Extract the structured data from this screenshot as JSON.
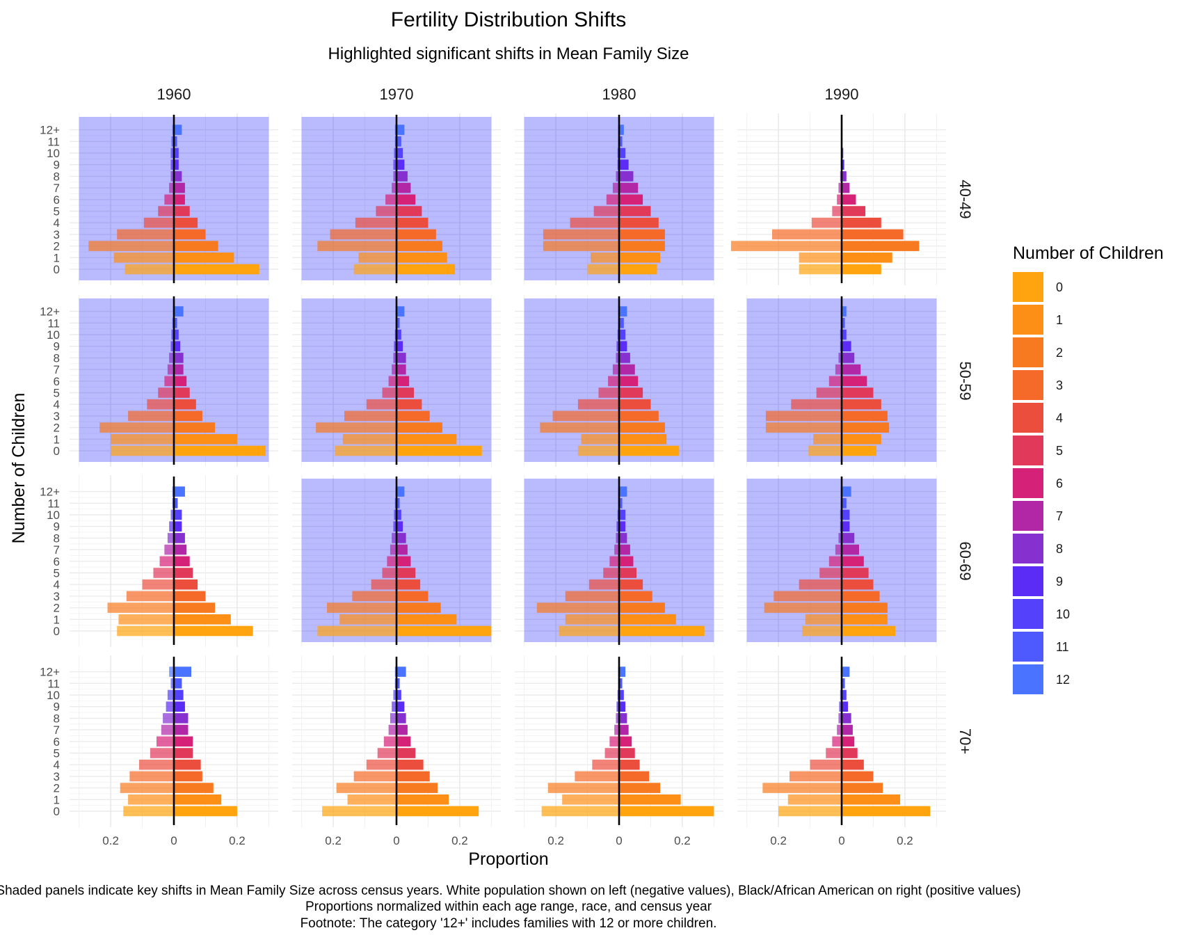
{
  "chart_data": {
    "type": "bar",
    "orientation": "horizontal-population-pyramid",
    "title": "Fertility Distribution Shifts",
    "subtitle": "Highlighted significant shifts in Mean Family Size",
    "xlabel": "Proportion",
    "ylabel": "Number of Children",
    "xlim": [
      -0.3,
      0.3
    ],
    "x_tick_labels": [
      "0.2",
      "0",
      "0.2"
    ],
    "x_tick_values": [
      -0.2,
      0,
      0.2
    ],
    "categories": [
      "0",
      "1",
      "2",
      "3",
      "4",
      "5",
      "6",
      "7",
      "8",
      "9",
      "10",
      "11",
      "12+"
    ],
    "columns": [
      "1960",
      "1970",
      "1980",
      "1990"
    ],
    "rows": [
      "40-49",
      "50-59",
      "60-69",
      "70+"
    ],
    "legend": {
      "title": "Number of Children",
      "labels": [
        "0",
        "1",
        "2",
        "3",
        "4",
        "5",
        "6",
        "7",
        "8",
        "9",
        "10",
        "11",
        "12"
      ],
      "colors": [
        "#FFA40F",
        "#FD8F17",
        "#F87A20",
        "#F56A28",
        "#EC4E3E",
        "#E0395A",
        "#D62178",
        "#B127A6",
        "#8630D0",
        "#5A2CF5",
        "#5441FC",
        "#4E5AFE",
        "#4A74FF"
      ]
    },
    "highlight_color": "#0000FF",
    "panels": [
      {
        "column": "1960",
        "row": "40-49",
        "highlighted": true,
        "white": [
          -0.155,
          -0.19,
          -0.27,
          -0.18,
          -0.095,
          -0.05,
          -0.03,
          -0.015,
          -0.01,
          -0.01,
          -0.01,
          -0.008,
          -0.005
        ],
        "black": [
          0.27,
          0.19,
          0.14,
          0.1,
          0.075,
          0.05,
          0.035,
          0.035,
          0.025,
          0.015,
          0.015,
          0.01,
          0.025
        ]
      },
      {
        "column": "1970",
        "row": "40-49",
        "highlighted": true,
        "white": [
          -0.135,
          -0.12,
          -0.25,
          -0.21,
          -0.13,
          -0.065,
          -0.035,
          -0.015,
          -0.01,
          -0.01,
          -0.008,
          -0.005,
          -0.005
        ],
        "black": [
          0.185,
          0.16,
          0.145,
          0.125,
          0.1,
          0.08,
          0.06,
          0.045,
          0.035,
          0.025,
          0.02,
          0.015,
          0.025
        ]
      },
      {
        "column": "1980",
        "row": "40-49",
        "highlighted": true,
        "white": [
          -0.1,
          -0.09,
          -0.24,
          -0.24,
          -0.155,
          -0.08,
          -0.04,
          -0.02,
          -0.01,
          -0.005,
          -0.005,
          -0.003,
          -0.003
        ],
        "black": [
          0.12,
          0.13,
          0.145,
          0.145,
          0.125,
          0.1,
          0.075,
          0.06,
          0.045,
          0.03,
          0.02,
          0.01,
          0.015
        ]
      },
      {
        "column": "1990",
        "row": "40-49",
        "highlighted": false,
        "white": [
          -0.135,
          -0.135,
          -0.35,
          -0.22,
          -0.095,
          -0.03,
          -0.015,
          -0.01,
          -0.005,
          -0.003,
          -0.002,
          0,
          0
        ],
        "black": [
          0.125,
          0.16,
          0.245,
          0.195,
          0.125,
          0.075,
          0.045,
          0.025,
          0.015,
          0.008,
          0.005,
          0,
          0
        ]
      },
      {
        "column": "1960",
        "row": "50-59",
        "highlighted": true,
        "white": [
          -0.2,
          -0.2,
          -0.235,
          -0.145,
          -0.085,
          -0.05,
          -0.03,
          -0.02,
          -0.015,
          -0.01,
          -0.008,
          -0.005,
          -0.003
        ],
        "black": [
          0.29,
          0.2,
          0.13,
          0.09,
          0.07,
          0.05,
          0.04,
          0.03,
          0.03,
          0.02,
          0.015,
          0.01,
          0.03
        ]
      },
      {
        "column": "1970",
        "row": "50-59",
        "highlighted": true,
        "white": [
          -0.195,
          -0.17,
          -0.255,
          -0.165,
          -0.095,
          -0.045,
          -0.025,
          -0.015,
          -0.01,
          -0.008,
          -0.005,
          -0.003,
          -0.003
        ],
        "black": [
          0.27,
          0.19,
          0.145,
          0.105,
          0.08,
          0.055,
          0.04,
          0.03,
          0.03,
          0.02,
          0.015,
          0.01,
          0.025
        ]
      },
      {
        "column": "1980",
        "row": "50-59",
        "highlighted": true,
        "white": [
          -0.13,
          -0.12,
          -0.25,
          -0.21,
          -0.13,
          -0.065,
          -0.035,
          -0.02,
          -0.01,
          -0.008,
          -0.005,
          -0.003,
          -0.003
        ],
        "black": [
          0.19,
          0.15,
          0.145,
          0.125,
          0.1,
          0.075,
          0.06,
          0.05,
          0.035,
          0.025,
          0.02,
          0.015,
          0.025
        ]
      },
      {
        "column": "1990",
        "row": "50-59",
        "highlighted": true,
        "white": [
          -0.105,
          -0.09,
          -0.24,
          -0.24,
          -0.16,
          -0.08,
          -0.04,
          -0.02,
          -0.01,
          -0.005,
          -0.005,
          -0.003,
          -0.003
        ],
        "black": [
          0.11,
          0.125,
          0.15,
          0.145,
          0.125,
          0.1,
          0.08,
          0.06,
          0.04,
          0.03,
          0.015,
          0.01,
          0.015
        ]
      },
      {
        "column": "1960",
        "row": "60-69",
        "highlighted": false,
        "white": [
          -0.18,
          -0.175,
          -0.21,
          -0.15,
          -0.1,
          -0.065,
          -0.045,
          -0.03,
          -0.02,
          -0.015,
          -0.01,
          -0.005,
          -0.005
        ],
        "black": [
          0.25,
          0.18,
          0.13,
          0.1,
          0.075,
          0.06,
          0.05,
          0.04,
          0.035,
          0.025,
          0.025,
          0.012,
          0.035
        ]
      },
      {
        "column": "1970",
        "row": "60-69",
        "highlighted": true,
        "white": [
          -0.25,
          -0.18,
          -0.22,
          -0.14,
          -0.08,
          -0.045,
          -0.03,
          -0.02,
          -0.015,
          -0.01,
          -0.008,
          -0.005,
          -0.003
        ],
        "black": [
          0.3,
          0.19,
          0.14,
          0.1,
          0.075,
          0.06,
          0.045,
          0.035,
          0.03,
          0.02,
          0.015,
          0.01,
          0.025
        ]
      },
      {
        "column": "1980",
        "row": "60-69",
        "highlighted": true,
        "white": [
          -0.19,
          -0.17,
          -0.26,
          -0.17,
          -0.095,
          -0.05,
          -0.03,
          -0.015,
          -0.01,
          -0.008,
          -0.005,
          -0.003,
          -0.003
        ],
        "black": [
          0.27,
          0.18,
          0.145,
          0.105,
          0.075,
          0.055,
          0.045,
          0.035,
          0.025,
          0.02,
          0.02,
          0.01,
          0.025
        ]
      },
      {
        "column": "1990",
        "row": "60-69",
        "highlighted": true,
        "white": [
          -0.125,
          -0.115,
          -0.245,
          -0.215,
          -0.135,
          -0.07,
          -0.04,
          -0.02,
          -0.01,
          -0.005,
          -0.005,
          -0.003,
          -0.003
        ],
        "black": [
          0.17,
          0.145,
          0.145,
          0.12,
          0.1,
          0.085,
          0.07,
          0.055,
          0.04,
          0.025,
          0.025,
          0.015,
          0.03
        ]
      },
      {
        "column": "1960",
        "row": "70+",
        "highlighted": false,
        "white": [
          -0.16,
          -0.145,
          -0.17,
          -0.14,
          -0.11,
          -0.075,
          -0.055,
          -0.04,
          -0.035,
          -0.025,
          -0.02,
          -0.01,
          -0.015
        ],
        "black": [
          0.2,
          0.15,
          0.125,
          0.09,
          0.085,
          0.06,
          0.06,
          0.045,
          0.045,
          0.035,
          0.03,
          0.025,
          0.055
        ]
      },
      {
        "column": "1970",
        "row": "70+",
        "highlighted": false,
        "white": [
          -0.235,
          -0.155,
          -0.19,
          -0.135,
          -0.095,
          -0.06,
          -0.04,
          -0.025,
          -0.02,
          -0.015,
          -0.01,
          -0.005,
          -0.005
        ],
        "black": [
          0.26,
          0.165,
          0.13,
          0.105,
          0.085,
          0.06,
          0.045,
          0.035,
          0.03,
          0.025,
          0.015,
          0.01,
          0.03
        ]
      },
      {
        "column": "1980",
        "row": "70+",
        "highlighted": false,
        "white": [
          -0.245,
          -0.18,
          -0.225,
          -0.14,
          -0.085,
          -0.045,
          -0.03,
          -0.015,
          -0.01,
          -0.008,
          -0.005,
          -0.003,
          -0.003
        ],
        "black": [
          0.3,
          0.195,
          0.13,
          0.095,
          0.065,
          0.05,
          0.04,
          0.03,
          0.025,
          0.02,
          0.015,
          0.01,
          0.02
        ]
      },
      {
        "column": "1990",
        "row": "70+",
        "highlighted": false,
        "white": [
          -0.2,
          -0.17,
          -0.25,
          -0.165,
          -0.1,
          -0.05,
          -0.03,
          -0.015,
          -0.01,
          -0.008,
          -0.005,
          -0.003,
          -0.003
        ],
        "black": [
          0.28,
          0.185,
          0.13,
          0.1,
          0.07,
          0.05,
          0.04,
          0.035,
          0.03,
          0.02,
          0.015,
          0.01,
          0.025
        ]
      }
    ],
    "caption_lines": [
      "Shaded panels indicate key shifts in Mean Family Size across census years. White population shown on left (negative values), Black/African American on right (positive values)",
      "Proportions normalized within each age range, race, and census year",
      "Footnote: The category '12+' includes families with 12 or more children."
    ]
  }
}
